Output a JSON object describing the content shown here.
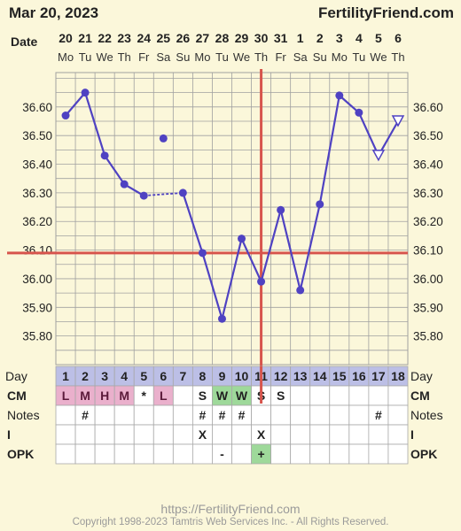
{
  "header": {
    "date": "Mar 20, 2023",
    "brand": "FertilityFriend.com"
  },
  "footer": {
    "url": "https://FertilityFriend.com",
    "copyright": "Copyright 1998-2023 Tamtris Web Services Inc. - All Rights Reserved."
  },
  "colors": {
    "background": "#fbf7da",
    "line": "#4f42c2",
    "coverline": "#d7554d",
    "grid": "#a0a0a0",
    "highlight_pink": "#eab0cc",
    "highlight_green": "#9ed99a",
    "day_row": "#bcbfe6"
  },
  "chart_data": {
    "type": "line",
    "title": "",
    "ylim": [
      35.7,
      36.72
    ],
    "y_ticks": [
      "36.60",
      "36.50",
      "36.40",
      "36.30",
      "36.20",
      "36.10",
      "36.00",
      "35.90",
      "35.80"
    ],
    "y_tick_values": [
      36.6,
      36.5,
      36.4,
      36.3,
      36.2,
      36.1,
      36.0,
      35.9,
      35.8
    ],
    "date_row_label": "Date",
    "dates": [
      "20",
      "21",
      "22",
      "23",
      "24",
      "25",
      "26",
      "27",
      "28",
      "29",
      "30",
      "31",
      "1",
      "2",
      "3",
      "4",
      "5",
      "6"
    ],
    "weekdays": [
      "Mo",
      "Tu",
      "We",
      "Th",
      "Fr",
      "Sa",
      "Su",
      "Mo",
      "Tu",
      "We",
      "Th",
      "Fr",
      "Sa",
      "Su",
      "Mo",
      "Tu",
      "We",
      "Th"
    ],
    "days": [
      1,
      2,
      3,
      4,
      5,
      6,
      7,
      8,
      9,
      10,
      11,
      12,
      13,
      14,
      15,
      16,
      17,
      18
    ],
    "temps": [
      36.57,
      36.65,
      36.43,
      36.33,
      36.29,
      36.49,
      36.3,
      36.09,
      35.86,
      36.14,
      35.99,
      36.24,
      35.96,
      36.26,
      36.64,
      36.58,
      36.43,
      36.55
    ],
    "discarded_days": [
      6
    ],
    "open_marker_days": [
      17,
      18
    ],
    "dotted_segment_days": [
      5,
      7
    ],
    "coverline": 36.09,
    "ovulation_day": 11,
    "rows": {
      "day": {
        "label": "Day"
      },
      "cm": {
        "label": "CM",
        "values": [
          "L",
          "M",
          "H",
          "M",
          "*",
          "L",
          "",
          "S",
          "W",
          "W",
          "S",
          "S",
          "",
          "",
          "",
          "",
          "",
          ""
        ],
        "highlight": [
          "pink",
          "pink",
          "pink",
          "pink",
          "",
          "pink",
          "",
          "",
          "green",
          "green",
          "",
          "",
          "",
          "",
          "",
          "",
          "",
          ""
        ]
      },
      "notes": {
        "label": "Notes",
        "values": [
          "",
          "#",
          "",
          "",
          "",
          "",
          "",
          "#",
          "#",
          "#",
          "",
          "",
          "",
          "",
          "",
          "",
          "#",
          ""
        ]
      },
      "i": {
        "label": "I",
        "values": [
          "",
          "",
          "",
          "",
          "",
          "",
          "",
          "X",
          "",
          "",
          "X",
          "",
          "",
          "",
          "",
          "",
          "",
          ""
        ]
      },
      "opk": {
        "label": "OPK",
        "values": [
          "",
          "",
          "",
          "",
          "",
          "",
          "",
          "",
          "-",
          "",
          "+",
          "",
          "",
          "",
          "",
          "",
          "",
          ""
        ],
        "highlight": [
          "",
          "",
          "",
          "",
          "",
          "",
          "",
          "",
          "",
          "",
          "green",
          "",
          "",
          "",
          "",
          "",
          "",
          ""
        ]
      }
    }
  }
}
